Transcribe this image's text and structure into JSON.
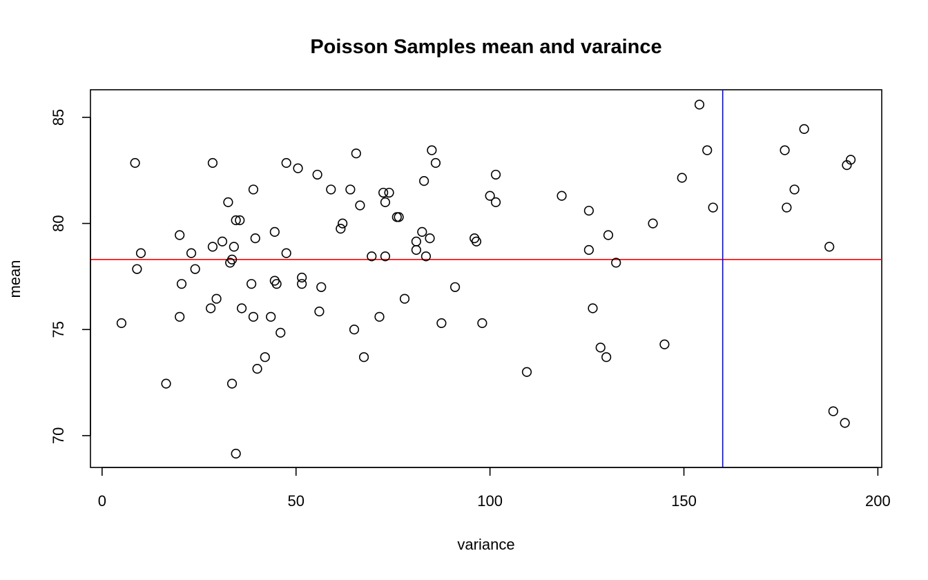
{
  "chart_data": {
    "type": "scatter",
    "title": "Poisson Samples mean and varaince",
    "xlabel": "variance",
    "ylabel": "mean",
    "xlim": [
      -3,
      201
    ],
    "ylim": [
      68.5,
      86.3
    ],
    "xticks": [
      0,
      50,
      100,
      150,
      200
    ],
    "yticks": [
      70,
      75,
      80,
      85
    ],
    "grid": false,
    "reference_lines": [
      {
        "orientation": "horizontal",
        "value": 78.3,
        "color": "#ff0000"
      },
      {
        "orientation": "vertical",
        "value": 160,
        "color": "#0000ff"
      }
    ],
    "series": [
      {
        "points": [
          [
            5,
            75.3
          ],
          [
            8.5,
            82.85
          ],
          [
            9,
            77.85
          ],
          [
            10,
            78.6
          ],
          [
            16.5,
            72.45
          ],
          [
            20,
            79.45
          ],
          [
            20,
            75.6
          ],
          [
            20.5,
            77.15
          ],
          [
            23,
            78.6
          ],
          [
            24,
            77.85
          ],
          [
            28,
            76
          ],
          [
            28.5,
            82.85
          ],
          [
            28.5,
            78.9
          ],
          [
            29.5,
            76.45
          ],
          [
            31,
            79.15
          ],
          [
            32.5,
            81
          ],
          [
            33,
            78.15
          ],
          [
            33.5,
            78.3
          ],
          [
            34,
            78.9
          ],
          [
            34.5,
            80.15
          ],
          [
            33.5,
            72.45
          ],
          [
            34.5,
            69.15
          ],
          [
            35.5,
            80.15
          ],
          [
            36,
            76
          ],
          [
            38.5,
            77.15
          ],
          [
            39,
            75.6
          ],
          [
            39,
            81.6
          ],
          [
            39.5,
            79.3
          ],
          [
            40,
            73.15
          ],
          [
            42,
            73.7
          ],
          [
            43.5,
            75.6
          ],
          [
            44.5,
            79.6
          ],
          [
            44.5,
            77.3
          ],
          [
            45,
            77.15
          ],
          [
            46,
            74.85
          ],
          [
            47.5,
            78.6
          ],
          [
            47.5,
            82.85
          ],
          [
            50.5,
            82.6
          ],
          [
            51.5,
            77.45
          ],
          [
            51.5,
            77.15
          ],
          [
            55.5,
            82.3
          ],
          [
            56,
            75.85
          ],
          [
            56.5,
            77
          ],
          [
            59,
            81.6
          ],
          [
            61.5,
            79.75
          ],
          [
            62,
            80
          ],
          [
            64,
            81.6
          ],
          [
            65,
            75
          ],
          [
            65.5,
            83.3
          ],
          [
            66.5,
            80.85
          ],
          [
            67.5,
            73.7
          ],
          [
            69.5,
            78.45
          ],
          [
            71.5,
            75.6
          ],
          [
            72.5,
            81.45
          ],
          [
            73,
            81
          ],
          [
            73,
            78.45
          ],
          [
            74,
            81.45
          ],
          [
            76,
            80.3
          ],
          [
            76.5,
            80.3
          ],
          [
            78,
            76.45
          ],
          [
            81,
            78.75
          ],
          [
            81,
            79.15
          ],
          [
            82.5,
            79.6
          ],
          [
            83,
            82
          ],
          [
            83.5,
            78.45
          ],
          [
            84.5,
            79.3
          ],
          [
            85,
            83.45
          ],
          [
            86,
            82.85
          ],
          [
            87.5,
            75.3
          ],
          [
            91,
            77
          ],
          [
            96,
            79.3
          ],
          [
            96.5,
            79.15
          ],
          [
            98,
            75.3
          ],
          [
            100,
            81.3
          ],
          [
            101.5,
            82.3
          ],
          [
            101.5,
            81
          ],
          [
            109.5,
            73
          ],
          [
            118.5,
            81.3
          ],
          [
            125.5,
            80.6
          ],
          [
            125.5,
            78.75
          ],
          [
            126.5,
            76
          ],
          [
            128.5,
            74.15
          ],
          [
            130,
            73.7
          ],
          [
            130.5,
            79.45
          ],
          [
            132.5,
            78.15
          ],
          [
            142,
            80
          ],
          [
            145,
            74.3
          ],
          [
            149.5,
            82.15
          ],
          [
            154,
            85.6
          ],
          [
            156,
            83.45
          ],
          [
            157.5,
            80.75
          ],
          [
            176,
            83.45
          ],
          [
            176.5,
            80.75
          ],
          [
            178.5,
            81.6
          ],
          [
            181,
            84.45
          ],
          [
            187.5,
            78.9
          ],
          [
            188.5,
            71.15
          ],
          [
            191.5,
            70.6
          ],
          [
            192,
            82.75
          ],
          [
            193,
            83
          ]
        ]
      }
    ]
  }
}
